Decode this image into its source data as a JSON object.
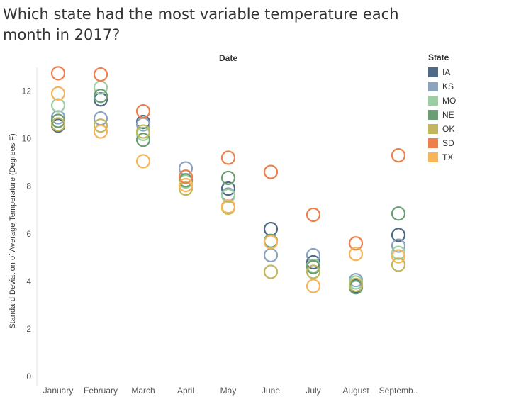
{
  "title": "Which state had the most variable temperature each month in 2017?",
  "chart_data": {
    "type": "scatter",
    "title": "Which state had the most variable temperature each month in 2017?",
    "header": "Date",
    "ylabel": "Standard Deviation of Average Temperature (Degrees F)",
    "ylim": [
      0,
      13
    ],
    "yticks": [
      0,
      2,
      4,
      6,
      8,
      10,
      12
    ],
    "grid": false,
    "legend_title": "State",
    "legend_position": "right",
    "categories": [
      "January",
      "February",
      "March",
      "April",
      "May",
      "June",
      "July",
      "August",
      "Septemb.."
    ],
    "series": [
      {
        "name": "IA",
        "color": "#4e6a86",
        "values": [
          10.55,
          11.65,
          10.7,
          8.25,
          7.9,
          6.2,
          4.8,
          3.8,
          5.95
        ]
      },
      {
        "name": "KS",
        "color": "#8ba3bd",
        "values": [
          10.9,
          10.85,
          10.6,
          8.75,
          7.65,
          5.1,
          5.1,
          4.05,
          5.5
        ]
      },
      {
        "name": "MO",
        "color": "#9dcea3",
        "values": [
          11.4,
          12.15,
          10.2,
          8.2,
          7.6,
          5.7,
          4.65,
          3.95,
          5.2
        ]
      },
      {
        "name": "NE",
        "color": "#6b9e72",
        "values": [
          10.75,
          11.8,
          9.95,
          8.25,
          8.35,
          5.7,
          4.6,
          3.75,
          6.85
        ]
      },
      {
        "name": "OK",
        "color": "#c2b75c",
        "values": [
          10.6,
          10.55,
          10.3,
          7.9,
          7.1,
          4.4,
          4.4,
          3.85,
          4.7
        ]
      },
      {
        "name": "SD",
        "color": "#ef7e4d",
        "values": [
          12.75,
          12.7,
          11.15,
          8.4,
          9.2,
          8.6,
          6.8,
          5.6,
          9.3
        ]
      },
      {
        "name": "TX",
        "color": "#f7b558",
        "values": [
          11.9,
          10.3,
          9.05,
          8.05,
          7.15,
          5.65,
          3.8,
          5.15,
          5.05
        ]
      }
    ]
  }
}
